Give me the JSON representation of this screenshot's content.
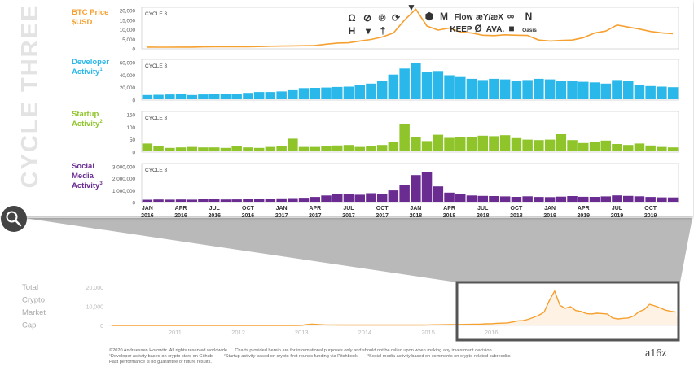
{
  "side_title": "CYCLE THREE",
  "chart_data": [
    {
      "type": "line",
      "name": "btc",
      "title": "BTC Price $USD",
      "title_lines": [
        "BTC Price",
        "$USD"
      ],
      "panel_label": "CYCLE 3",
      "color": "#f5a030",
      "yticks": [
        "20,000",
        "15,000",
        "10,000",
        "5,000",
        "0"
      ],
      "ylim": [
        0,
        20000
      ],
      "x_start": "2016-01",
      "x_end": "2019-12",
      "values": [
        430,
        410,
        415,
        430,
        450,
        580,
        670,
        600,
        610,
        640,
        720,
        900,
        960,
        1050,
        1140,
        1250,
        1900,
        2500,
        2600,
        3500,
        4300,
        5500,
        7500,
        14000,
        19500,
        11000,
        9000,
        10000,
        8000,
        7500,
        6400,
        6200,
        6600,
        6400,
        6300,
        4000,
        3500,
        3800,
        4000,
        5200,
        7500,
        8500,
        11500,
        10500,
        9500,
        8300,
        7600,
        7200
      ],
      "annotations": [
        "Ω",
        "⊘",
        "℗",
        "⟳",
        "▼",
        "⬢",
        "M",
        "Flow",
        "æY/æX",
        "∞",
        "N",
        "H",
        "▾",
        "†",
        "KEEP",
        "Ø",
        "AVA.",
        "■",
        "Oasis"
      ]
    },
    {
      "type": "bar",
      "name": "dev",
      "title": "Developer Activity",
      "title_lines": [
        "Developer",
        "Activity"
      ],
      "sup": "1",
      "panel_label": "CYCLE 3",
      "color": "#2ab8ea",
      "yticks": [
        "60,000",
        "40,000",
        "20,000",
        "0"
      ],
      "ylim": [
        0,
        65000
      ],
      "values": [
        7000,
        7500,
        8000,
        9000,
        7000,
        8000,
        8500,
        9000,
        9500,
        10500,
        12000,
        12000,
        13000,
        15000,
        18500,
        19000,
        19500,
        20500,
        21000,
        23000,
        26000,
        31000,
        41000,
        51000,
        60000,
        45000,
        47000,
        40000,
        37000,
        34000,
        32000,
        34000,
        33000,
        30000,
        32000,
        34000,
        33000,
        31000,
        30000,
        29000,
        28000,
        26000,
        32000,
        30000,
        24000,
        22000,
        21000,
        20000
      ]
    },
    {
      "type": "bar",
      "name": "startup",
      "title": "Startup Activity",
      "title_lines": [
        "Startup",
        "Activity"
      ],
      "sup": "2",
      "panel_label": "CYCLE 3",
      "color": "#8fc42b",
      "yticks": [
        "150",
        "100",
        "50",
        "0"
      ],
      "ylim": [
        0,
        160
      ],
      "values": [
        32,
        22,
        14,
        16,
        18,
        16,
        16,
        14,
        20,
        16,
        14,
        18,
        20,
        52,
        18,
        18,
        22,
        24,
        26,
        18,
        22,
        26,
        38,
        112,
        60,
        42,
        68,
        55,
        58,
        60,
        64,
        62,
        66,
        54,
        48,
        46,
        48,
        70,
        46,
        34,
        38,
        44,
        30,
        26,
        32,
        24,
        18,
        16
      ]
    },
    {
      "type": "bar",
      "name": "social",
      "title": "Social Media Activity",
      "title_lines": [
        "Social",
        "Media",
        "Activity"
      ],
      "sup": "3",
      "panel_label": "CYCLE 3",
      "color": "#6a2c91",
      "yticks": [
        "3,000,000",
        "2,000,000",
        "1,000,000",
        "0"
      ],
      "ylim": [
        0,
        3300000
      ],
      "values": [
        180000,
        200000,
        190000,
        200000,
        190000,
        220000,
        230000,
        200000,
        210000,
        230000,
        260000,
        280000,
        300000,
        320000,
        350000,
        420000,
        550000,
        650000,
        700000,
        620000,
        750000,
        650000,
        1000000,
        1500000,
        2350000,
        2600000,
        1350000,
        800000,
        650000,
        550000,
        520000,
        500000,
        470000,
        430000,
        480000,
        420000,
        410000,
        450000,
        500000,
        440000,
        430000,
        470000,
        560000,
        520000,
        480000,
        420000,
        390000,
        380000
      ]
    },
    {
      "type": "area",
      "name": "market_cap",
      "title": "Total Crypto Market Cap",
      "title_lines": [
        "Total",
        "Crypto",
        "Market",
        "Cap"
      ],
      "color": "#f5a030",
      "yticks": [
        "20,000",
        "10,000",
        "0"
      ],
      "ylim": [
        0,
        20000
      ],
      "x_start": "2010",
      "x_end": "2019-12",
      "values": [
        0,
        0,
        0,
        0,
        0,
        0,
        0,
        0,
        0,
        0,
        0,
        0,
        0,
        0,
        0,
        0,
        0,
        0,
        0,
        0,
        0,
        0,
        0,
        0,
        0,
        0,
        0,
        0,
        0,
        0,
        0,
        0,
        0,
        0,
        0,
        0,
        50,
        450,
        700,
        500,
        350,
        250,
        250,
        200,
        200,
        200,
        200,
        200,
        220,
        220,
        200,
        200,
        200,
        200,
        200,
        200,
        200,
        200,
        200,
        200,
        250,
        350,
        350,
        400,
        420,
        450,
        500,
        550,
        600,
        650,
        700,
        850,
        900,
        1100,
        1200,
        1300,
        1800,
        2400,
        2500,
        3200,
        4200,
        5300,
        7000,
        13000,
        18000,
        10500,
        9000,
        9800,
        7800,
        7300,
        6200,
        6000,
        6400,
        6200,
        6000,
        3900,
        3400,
        3700,
        3900,
        5000,
        7200,
        8300,
        11000,
        10200,
        9200,
        8000,
        7400,
        7000
      ],
      "xtick_labels": [
        "2011",
        "2012",
        "2013",
        "2014",
        "2015",
        "2016"
      ]
    }
  ],
  "x_axis": {
    "ticks": [
      {
        "month": "JAN",
        "year": "2016"
      },
      {
        "month": "APR",
        "year": "2016"
      },
      {
        "month": "JUL",
        "year": "2016"
      },
      {
        "month": "OCT",
        "year": "2016"
      },
      {
        "month": "JAN",
        "year": "2017"
      },
      {
        "month": "APR",
        "year": "2017"
      },
      {
        "month": "JUL",
        "year": "2017"
      },
      {
        "month": "OCT",
        "year": "2017"
      },
      {
        "month": "JAN",
        "year": "2018"
      },
      {
        "month": "APR",
        "year": "2018"
      },
      {
        "month": "JUL",
        "year": "2018"
      },
      {
        "month": "OCT",
        "year": "2018"
      },
      {
        "month": "JAN",
        "year": "2019"
      },
      {
        "month": "APR",
        "year": "2019"
      },
      {
        "month": "JUL",
        "year": "2019"
      },
      {
        "month": "OCT",
        "year": "2019"
      }
    ]
  },
  "footer": {
    "copyright": "©2020 Andreessen Horowitz. All rights reserved worldwide.",
    "disclaimer": "Charts provided herein are for informational purposes only and should not be relied upon when making any investment decision.",
    "note1": "¹Developer activity based on crypto stars on Github",
    "note2": "²Startup activity based on crypto first rounds funding via Pitchbook",
    "note3": "³Social media activity based on comments on crypto-related subreddits",
    "past_performance": "Past performance is no guarantee of future results.",
    "logo": "a16z"
  },
  "icons": {
    "magnifier": "magnifier-icon"
  }
}
